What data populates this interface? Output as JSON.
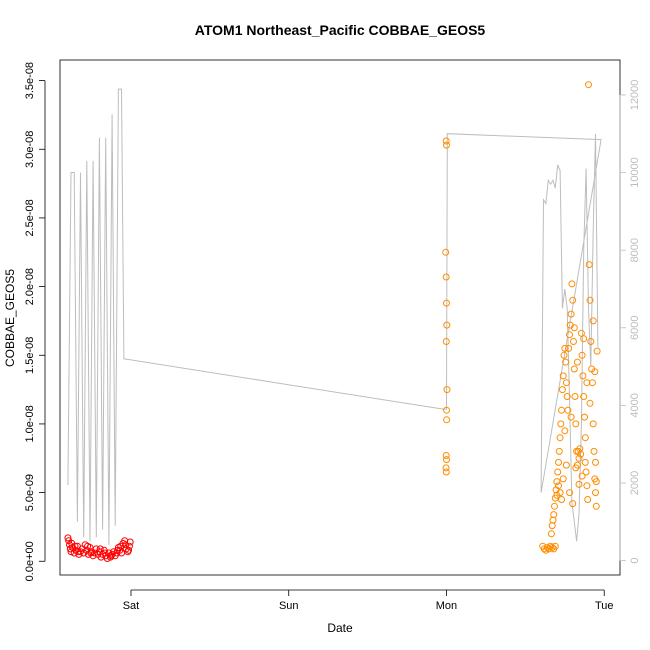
{
  "chart_data": {
    "type": "scatter",
    "title": "ATOM1 Northeast_Pacific COBBAE_GEOS5",
    "xlabel": "Date",
    "ylabel": "COBBAE_GEOS5",
    "x_ticks": [
      {
        "day": 1,
        "label": "Sat"
      },
      {
        "day": 2,
        "label": "Sun"
      },
      {
        "day": 3,
        "label": "Mon"
      },
      {
        "day": 4,
        "label": "Tue"
      }
    ],
    "xlim": [
      0.55,
      4.1
    ],
    "ylim": [
      -1e-09,
      3.65e-08
    ],
    "y_ticks": [
      {
        "value": 0,
        "label": "0.0e+00"
      },
      {
        "value": 5e-09,
        "label": "5.0e-09"
      },
      {
        "value": 1e-08,
        "label": "1.0e-08"
      },
      {
        "value": 1.5e-08,
        "label": "1.5e-08"
      },
      {
        "value": 2e-08,
        "label": "2.0e-08"
      },
      {
        "value": 2.5e-08,
        "label": "2.5e-08"
      },
      {
        "value": 3e-08,
        "label": "3.0e-08"
      },
      {
        "value": 3.5e-08,
        "label": "3.5e-08"
      }
    ],
    "y2lim": [
      -370,
      12900
    ],
    "y2_ticks": [
      {
        "value": 0,
        "label": "0"
      },
      {
        "value": 2000,
        "label": "2000"
      },
      {
        "value": 4000,
        "label": "4000"
      },
      {
        "value": 6000,
        "label": "6000"
      },
      {
        "value": 8000,
        "label": "8000"
      },
      {
        "value": 10000,
        "label": "10000"
      },
      {
        "value": 12000,
        "label": "12000"
      }
    ],
    "grid": false,
    "colors": {
      "series_red": "#ff0000",
      "series_orange": "#ff8c00",
      "altitude_line": "#bdbdbd",
      "axis": "#000000",
      "axis2": "#bdbdbd"
    },
    "series": [
      {
        "color": "#ff0000",
        "points": [
          [
            0.6,
            1.7e-09
          ],
          [
            0.605,
            1.5e-09
          ],
          [
            0.61,
            1.2e-09
          ],
          [
            0.615,
            9e-10
          ],
          [
            0.62,
            7e-10
          ],
          [
            0.63,
            1e-09
          ],
          [
            0.64,
            6e-10
          ],
          [
            0.65,
            8e-10
          ],
          [
            0.66,
            1.1e-09
          ],
          [
            0.67,
            5e-10
          ],
          [
            0.68,
            7e-10
          ],
          [
            0.69,
            9e-10
          ],
          [
            0.7,
            6e-10
          ],
          [
            0.71,
            1.2e-09
          ],
          [
            0.72,
            8e-10
          ],
          [
            0.73,
            5e-10
          ],
          [
            0.74,
            1e-09
          ],
          [
            0.75,
            7e-10
          ],
          [
            0.76,
            4e-10
          ],
          [
            0.77,
            6e-10
          ],
          [
            0.78,
            9e-10
          ],
          [
            0.79,
            5e-10
          ],
          [
            0.8,
            7e-10
          ],
          [
            0.81,
            3e-10
          ],
          [
            0.82,
            5e-10
          ],
          [
            0.83,
            8e-10
          ],
          [
            0.84,
            4e-10
          ],
          [
            0.85,
            2e-10
          ],
          [
            0.86,
            6e-10
          ],
          [
            0.87,
            3e-10
          ],
          [
            0.88,
            5e-10
          ],
          [
            0.89,
            7e-10
          ],
          [
            0.9,
            4e-10
          ],
          [
            0.91,
            6e-10
          ],
          [
            0.92,
            1e-09
          ],
          [
            0.93,
            8e-10
          ],
          [
            0.94,
            6e-10
          ],
          [
            0.95,
            1.3e-09
          ],
          [
            0.96,
            1.5e-09
          ],
          [
            0.97,
            9e-10
          ],
          [
            0.98,
            7e-10
          ],
          [
            0.99,
            1.1e-09
          ],
          [
            0.995,
            1.4e-09
          ],
          [
            0.625,
            1.3e-09
          ],
          [
            0.645,
            1.1e-09
          ],
          [
            0.665,
            7e-10
          ],
          [
            0.725,
            1.1e-09
          ],
          [
            0.745,
            6e-10
          ],
          [
            0.805,
            9e-10
          ],
          [
            0.835,
            6e-10
          ],
          [
            0.875,
            4e-10
          ],
          [
            0.915,
            8e-10
          ],
          [
            0.935,
            1.1e-09
          ],
          [
            0.965,
            1.2e-09
          ],
          [
            0.985,
            8e-10
          ]
        ]
      },
      {
        "color": "#ff8c00",
        "points": [
          [
            2.998,
            3.06e-08
          ],
          [
            3.0,
            3.03e-08
          ],
          [
            2.995,
            2.25e-08
          ],
          [
            2.998,
            2.07e-08
          ],
          [
            3.0,
            1.88e-08
          ],
          [
            3.002,
            1.72e-08
          ],
          [
            2.999,
            1.6e-08
          ],
          [
            3.003,
            1.25e-08
          ],
          [
            3.0,
            1.1e-08
          ],
          [
            3.001,
            1.03e-08
          ],
          [
            2.998,
            7.7e-09
          ],
          [
            3.0,
            7.4e-09
          ],
          [
            2.997,
            6.8e-09
          ],
          [
            2.999,
            6.5e-09
          ],
          [
            3.61,
            1.1e-09
          ],
          [
            3.62,
            9e-10
          ],
          [
            3.63,
            8e-10
          ],
          [
            3.64,
            1e-09
          ],
          [
            3.65,
            9e-10
          ],
          [
            3.66,
            1.1e-09
          ],
          [
            3.67,
            1e-09
          ],
          [
            3.68,
            9e-10
          ],
          [
            3.69,
            1.1e-09
          ],
          [
            3.665,
            2e-09
          ],
          [
            3.67,
            2.6e-09
          ],
          [
            3.675,
            3e-09
          ],
          [
            3.68,
            3.4e-09
          ],
          [
            3.685,
            4e-09
          ],
          [
            3.69,
            4.6e-09
          ],
          [
            3.695,
            5.2e-09
          ],
          [
            3.7,
            5.8e-09
          ],
          [
            3.705,
            6.5e-09
          ],
          [
            3.71,
            7.2e-09
          ],
          [
            3.715,
            8e-09
          ],
          [
            3.72,
            9e-09
          ],
          [
            3.725,
            1e-08
          ],
          [
            3.73,
            1.1e-08
          ],
          [
            3.735,
            1.25e-08
          ],
          [
            3.74,
            1.35e-08
          ],
          [
            3.745,
            1.5e-08
          ],
          [
            3.75,
            1.55e-08
          ],
          [
            3.755,
            1.45e-08
          ],
          [
            3.76,
            1.3e-08
          ],
          [
            3.765,
            1.2e-08
          ],
          [
            3.77,
            1.1e-08
          ],
          [
            3.775,
            1.55e-08
          ],
          [
            3.78,
            1.65e-08
          ],
          [
            3.785,
            1.72e-08
          ],
          [
            3.79,
            1.8e-08
          ],
          [
            3.795,
            2.02e-08
          ],
          [
            3.8,
            1.9e-08
          ],
          [
            3.805,
            1.6e-08
          ],
          [
            3.81,
            1.4e-08
          ],
          [
            3.815,
            1.2e-08
          ],
          [
            3.82,
            1e-08
          ],
          [
            3.825,
            8e-09
          ],
          [
            3.83,
            7e-09
          ],
          [
            3.835,
            8e-09
          ],
          [
            3.84,
            7.5e-09
          ],
          [
            3.845,
            8.2e-09
          ],
          [
            3.85,
            7.8e-09
          ],
          [
            3.855,
            1.66e-08
          ],
          [
            3.86,
            1.5e-08
          ],
          [
            3.865,
            1.35e-08
          ],
          [
            3.87,
            1.2e-08
          ],
          [
            3.875,
            1.05e-08
          ],
          [
            3.88,
            9e-09
          ],
          [
            3.885,
            6.5e-09
          ],
          [
            3.89,
            5.5e-09
          ],
          [
            3.895,
            4.5e-09
          ],
          [
            3.9,
            3.47e-08
          ],
          [
            3.905,
            2.16e-08
          ],
          [
            3.91,
            1.9e-08
          ],
          [
            3.915,
            1.6e-08
          ],
          [
            3.92,
            1.4e-08
          ],
          [
            3.925,
            1.3e-08
          ],
          [
            3.93,
            1e-08
          ],
          [
            3.935,
            8e-09
          ],
          [
            3.94,
            6e-09
          ],
          [
            3.945,
            5e-09
          ],
          [
            3.95,
            4e-09
          ],
          [
            3.955,
            1.53e-08
          ],
          [
            3.93,
            1.75e-08
          ],
          [
            3.94,
            1.38e-08
          ],
          [
            3.72,
            5e-09
          ],
          [
            3.73,
            4.5e-09
          ],
          [
            3.74,
            6e-09
          ],
          [
            3.76,
            7e-09
          ],
          [
            3.78,
            5e-09
          ],
          [
            3.8,
            4.2e-09
          ],
          [
            3.82,
            6.8e-09
          ],
          [
            3.84,
            5.6e-09
          ],
          [
            3.86,
            6.2e-09
          ],
          [
            3.88,
            7.2e-09
          ],
          [
            3.7,
            4.8e-09
          ],
          [
            3.71,
            5.5e-09
          ],
          [
            3.75,
            9.5e-09
          ],
          [
            3.79,
            1.05e-08
          ],
          [
            3.81,
            1.7e-08
          ],
          [
            3.83,
            1.45e-08
          ],
          [
            3.87,
            1.62e-08
          ],
          [
            3.89,
            1.3e-08
          ],
          [
            3.91,
            1.15e-08
          ],
          [
            3.945,
            7.2e-09
          ],
          [
            3.95,
            5.8e-09
          ]
        ]
      }
    ],
    "altitude_line": [
      [
        0.6,
        1950
      ],
      [
        0.62,
        10000
      ],
      [
        0.64,
        10000
      ],
      [
        0.66,
        1000
      ],
      [
        0.68,
        10000
      ],
      [
        0.7,
        600
      ],
      [
        0.72,
        10300
      ],
      [
        0.74,
        500
      ],
      [
        0.76,
        10300
      ],
      [
        0.78,
        600
      ],
      [
        0.8,
        10900
      ],
      [
        0.82,
        800
      ],
      [
        0.84,
        10900
      ],
      [
        0.86,
        400
      ],
      [
        0.88,
        11500
      ],
      [
        0.9,
        900
      ],
      [
        0.92,
        12150
      ],
      [
        0.94,
        12150
      ],
      [
        0.955,
        5200
      ],
      [
        2.985,
        3900
      ],
      [
        3.0,
        3900
      ],
      [
        3.005,
        11000
      ],
      [
        3.98,
        10850
      ],
      [
        3.6,
        1750
      ],
      [
        3.615,
        9300
      ],
      [
        3.63,
        9200
      ],
      [
        3.645,
        9800
      ],
      [
        3.66,
        9700
      ],
      [
        3.675,
        9800
      ],
      [
        3.69,
        9600
      ],
      [
        3.705,
        10200
      ],
      [
        3.72,
        10050
      ],
      [
        3.735,
        6500
      ],
      [
        3.75,
        7000
      ],
      [
        3.765,
        6500
      ],
      [
        3.78,
        4200
      ],
      [
        3.795,
        1500
      ],
      [
        3.81,
        1000
      ],
      [
        3.825,
        500
      ],
      [
        3.84,
        1200
      ],
      [
        3.855,
        3500
      ],
      [
        3.87,
        8000
      ],
      [
        3.885,
        10100
      ],
      [
        3.9,
        6500
      ],
      [
        3.915,
        5000
      ],
      [
        3.93,
        8500
      ],
      [
        3.945,
        11000
      ],
      [
        3.96,
        5500
      ]
    ]
  }
}
